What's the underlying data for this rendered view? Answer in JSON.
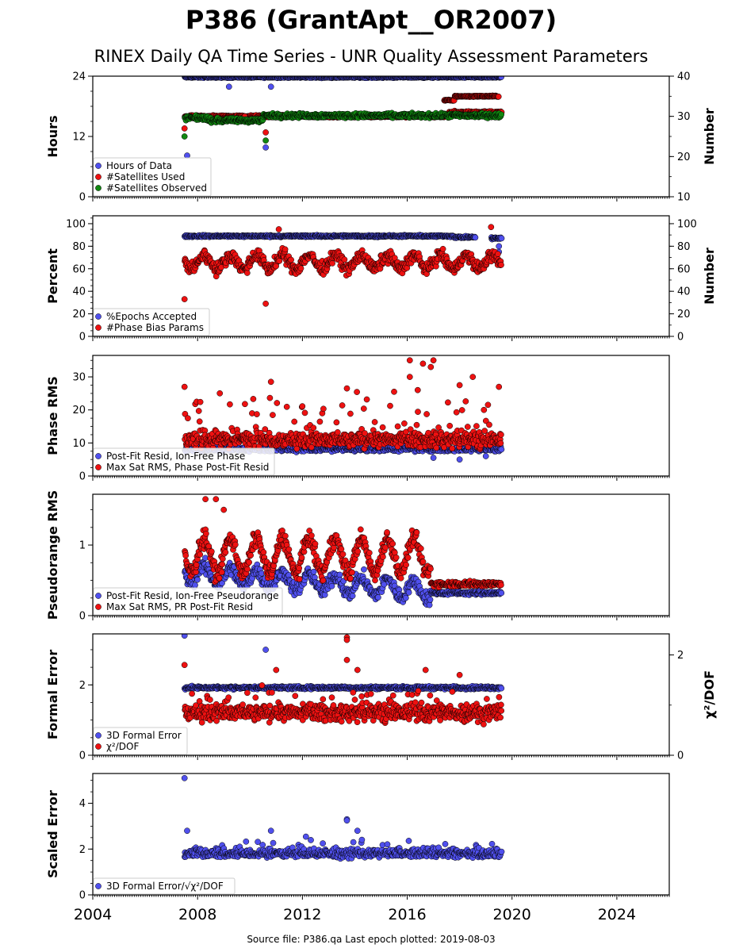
{
  "title": "P386 (GrantApt__OR2007)",
  "subtitle": "RINEX Daily QA Time Series - UNR Quality Assessment Parameters",
  "footer": "Source file: P386.qa Last epoch plotted: 2019-08-03",
  "colors": {
    "blue": "#5050ee",
    "red": "#ee1111",
    "green": "#118811",
    "edge": "#000000"
  },
  "chart_data": [
    {
      "type": "scatter",
      "ylabel": "Hours",
      "y2label": "Number",
      "xlim": [
        2004,
        2026
      ],
      "ylim": [
        0,
        24
      ],
      "yticks": [
        0,
        12,
        24
      ],
      "y2lim": [
        10,
        40
      ],
      "y2ticks": [
        10,
        20,
        30,
        40
      ],
      "legend_loc": "lower-left",
      "series": [
        {
          "name": "Hours of Data",
          "color": "blue",
          "axis": "left",
          "points": [
            [
              2007.6,
              8.2
            ],
            [
              2009.2,
              21.9
            ],
            [
              2010.6,
              9.8
            ],
            [
              2010.8,
              21.9
            ]
          ],
          "bands": [
            {
              "x0": 2007.5,
              "x1": 2019.6,
              "center": 23.8,
              "spread": 0.2
            }
          ]
        },
        {
          "name": "#Satellites Used",
          "color": "red",
          "axis": "right",
          "points": [
            [
              2007.5,
              27
            ],
            [
              2009.8,
              30
            ],
            [
              2010.6,
              26
            ]
          ],
          "bands": [
            {
              "x0": 2007.5,
              "x1": 2017.4,
              "center": 30,
              "spread": 0.4
            },
            {
              "x0": 2017.4,
              "x1": 2017.8,
              "center": 34,
              "spread": 0.2
            },
            {
              "x0": 2017.8,
              "x1": 2018.6,
              "center": 35,
              "spread": 0.2
            },
            {
              "x0": 2018.6,
              "x1": 2019.5,
              "center": 35,
              "spread": 0.2
            },
            {
              "x0": 2017.6,
              "x1": 2019.6,
              "center": 31,
              "spread": 0.5
            }
          ]
        },
        {
          "name": "#Satellites Observed",
          "color": "green",
          "axis": "right",
          "points": [
            [
              2007.5,
              25
            ],
            [
              2010.6,
              24
            ]
          ],
          "bands": [
            {
              "x0": 2007.5,
              "x1": 2008.4,
              "center": 29.6,
              "spread": 0.8
            },
            {
              "x0": 2008.4,
              "x1": 2010.5,
              "center": 29.0,
              "spread": 0.8
            },
            {
              "x0": 2010.5,
              "x1": 2019.6,
              "center": 30.2,
              "spread": 0.8
            }
          ]
        }
      ]
    },
    {
      "type": "scatter",
      "ylabel": "Percent",
      "y2label": "Number",
      "xlim": [
        2004,
        2026
      ],
      "ylim": [
        0,
        107
      ],
      "yticks": [
        0,
        20,
        40,
        60,
        80,
        100
      ],
      "y2lim": [
        0,
        107
      ],
      "y2ticks": [
        0,
        20,
        40,
        60,
        80,
        100
      ],
      "legend_loc": "lower-left",
      "series": [
        {
          "name": "%Epochs Accepted",
          "color": "blue",
          "axis": "left",
          "points": [
            [
              2019.5,
              75
            ],
            [
              2019.5,
              80
            ]
          ],
          "bands": [
            {
              "x0": 2007.5,
              "x1": 2017.8,
              "center": 89,
              "spread": 1.2
            },
            {
              "x0": 2017.8,
              "x1": 2018.6,
              "center": 88,
              "spread": 1.2
            },
            {
              "x0": 2019.2,
              "x1": 2019.6,
              "center": 87,
              "spread": 1.5
            }
          ]
        },
        {
          "name": "#Phase Bias Params",
          "color": "red",
          "axis": "right",
          "points": [
            [
              2007.5,
              33
            ],
            [
              2010.6,
              29
            ],
            [
              2011.1,
              95
            ],
            [
              2019.2,
              97
            ]
          ],
          "bands": [
            {
              "x0": 2007.5,
              "x1": 2019.6,
              "center": 66,
              "spread": 8,
              "wave": 6
            }
          ]
        }
      ]
    },
    {
      "type": "scatter",
      "ylabel": "Phase RMS",
      "xlim": [
        2004,
        2026
      ],
      "ylim": [
        0,
        36.5
      ],
      "yticks": [
        0,
        10,
        20,
        30
      ],
      "legend_loc": "lower-left",
      "series": [
        {
          "name": "Post-Fit Resid, Ion-Free Phase",
          "color": "blue",
          "axis": "left",
          "points": [
            [
              2017.0,
              5.5
            ],
            [
              2018.0,
              5.0
            ],
            [
              2019.0,
              6.0
            ]
          ],
          "bands": [
            {
              "x0": 2007.5,
              "x1": 2019.6,
              "center": 8.2,
              "spread": 1.2
            }
          ]
        },
        {
          "name": "Max Sat RMS, Phase Post-Fit Resid",
          "color": "red",
          "axis": "left",
          "points": [
            [
              2007.5,
              27
            ],
            [
              2010.8,
              28.5
            ],
            [
              2013.7,
              26.5
            ],
            [
              2015.5,
              25.5
            ],
            [
              2016.1,
              30
            ],
            [
              2016.1,
              35
            ],
            [
              2016.4,
              26
            ],
            [
              2016.6,
              34
            ],
            [
              2016.9,
              33
            ],
            [
              2017.0,
              35
            ],
            [
              2018.0,
              27.5
            ],
            [
              2018.5,
              30
            ],
            [
              2019.5,
              27
            ]
          ],
          "bands": [
            {
              "x0": 2007.5,
              "x1": 2019.6,
              "center": 11,
              "spread": 3.5,
              "outliers": 14
            }
          ]
        }
      ]
    },
    {
      "type": "scatter",
      "ylabel": "Pseudorange RMS",
      "xlim": [
        2004,
        2026
      ],
      "ylim": [
        0,
        1.72
      ],
      "yticks": [
        0,
        1
      ],
      "legend_loc": "lower-left",
      "series": [
        {
          "name": "Post-Fit Resid, Ion-Free Pseudorange",
          "color": "blue",
          "axis": "left",
          "bands": [
            {
              "x0": 2007.5,
              "x1": 2016.9,
              "center": 0.6,
              "spread": 0.15,
              "trend": -0.25,
              "wave": 0.12
            },
            {
              "x0": 2016.9,
              "x1": 2019.6,
              "center": 0.32,
              "spread": 0.04
            }
          ]
        },
        {
          "name": "Max Sat RMS, PR Post-Fit Resid",
          "color": "red",
          "axis": "left",
          "points": [
            [
              2008.3,
              1.65
            ],
            [
              2008.7,
              1.65
            ],
            [
              2009.0,
              1.5
            ]
          ],
          "bands": [
            {
              "x0": 2007.5,
              "x1": 2016.9,
              "center": 0.85,
              "spread": 0.18,
              "trend": 0.0,
              "wave": 0.25
            },
            {
              "x0": 2016.9,
              "x1": 2019.6,
              "center": 0.45,
              "spread": 0.06
            }
          ]
        }
      ]
    },
    {
      "type": "scatter",
      "ylabel": "Formal Error",
      "y2label": "χ²/DOF",
      "xlim": [
        2004,
        2026
      ],
      "ylim": [
        0,
        3.45
      ],
      "yticks": [
        0,
        2
      ],
      "y2lim": [
        0,
        2.42
      ],
      "y2ticks": [
        0,
        2
      ],
      "legend_loc": "lower-left",
      "series": [
        {
          "name": "3D Formal Error",
          "color": "blue",
          "axis": "left",
          "points": [
            [
              2007.5,
              3.4
            ],
            [
              2010.6,
              3.0
            ]
          ],
          "bands": [
            {
              "x0": 2007.5,
              "x1": 2019.6,
              "center": 1.92,
              "spread": 0.06
            }
          ]
        },
        {
          "name": "χ²/DOF",
          "color": "red",
          "axis": "right",
          "points": [
            [
              2007.5,
              1.8
            ],
            [
              2011.0,
              1.7
            ],
            [
              2013.7,
              2.35
            ],
            [
              2013.7,
              2.3
            ],
            [
              2013.7,
              1.9
            ],
            [
              2014.1,
              1.7
            ],
            [
              2016.7,
              1.7
            ],
            [
              2018.0,
              1.6
            ]
          ],
          "bands": [
            {
              "x0": 2007.5,
              "x1": 2019.6,
              "center": 0.85,
              "spread": 0.25,
              "outliers": 0.45
            }
          ]
        }
      ]
    },
    {
      "type": "scatter",
      "ylabel": "Scaled Error",
      "xlim": [
        2004,
        2026
      ],
      "ylim": [
        0,
        5.3
      ],
      "yticks": [
        0,
        2,
        4
      ],
      "legend_loc": "lower-left",
      "series": [
        {
          "name": "3D Formal Error/√χ²/DOF",
          "color": "blue",
          "axis": "left",
          "points": [
            [
              2007.5,
              5.1
            ],
            [
              2013.7,
              3.3
            ],
            [
              2013.7,
              3.25
            ],
            [
              2007.6,
              2.8
            ],
            [
              2010.8,
              2.8
            ],
            [
              2014.1,
              2.8
            ]
          ],
          "bands": [
            {
              "x0": 2007.5,
              "x1": 2019.6,
              "center": 1.8,
              "spread": 0.25,
              "outliers": 0.5
            }
          ]
        }
      ]
    }
  ],
  "xaxis": {
    "ticks": [
      2004,
      2008,
      2012,
      2016,
      2020,
      2024
    ]
  }
}
